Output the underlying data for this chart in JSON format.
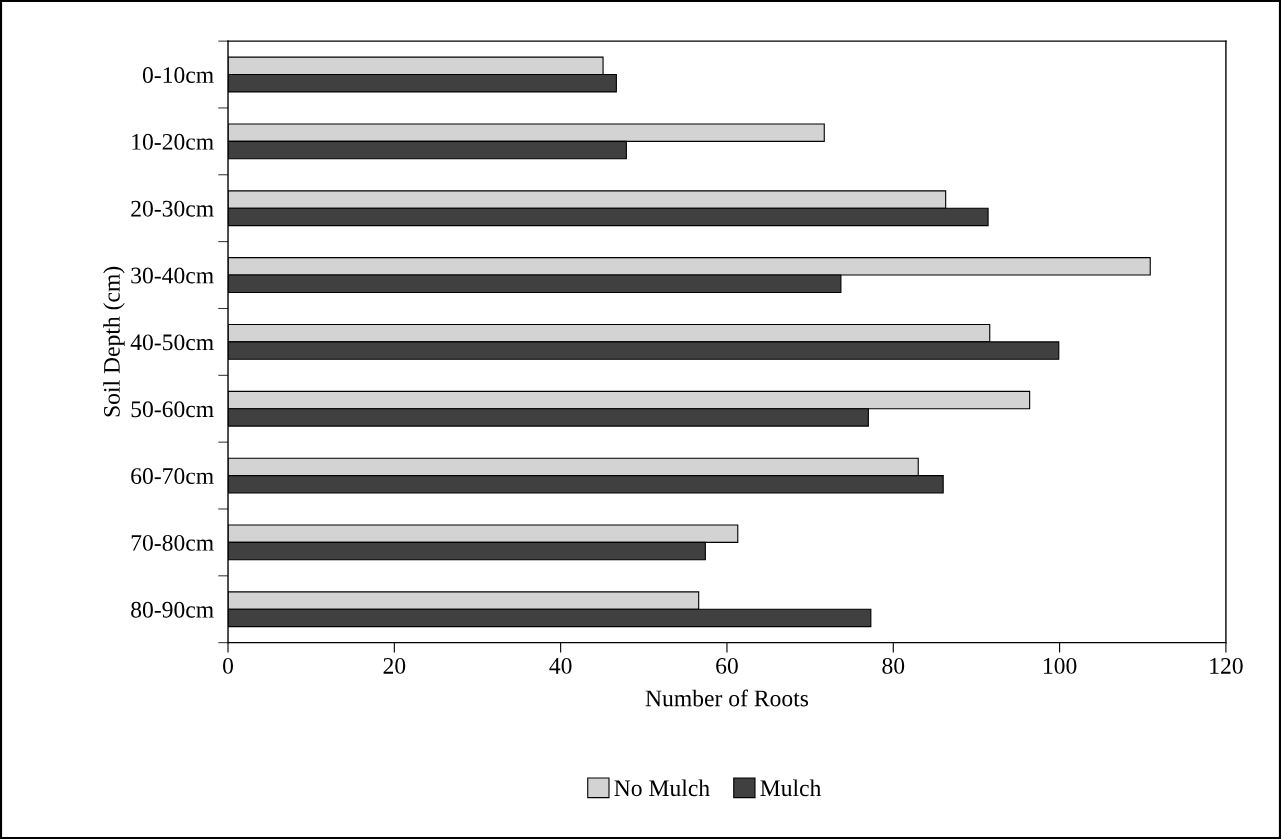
{
  "chart_data": {
    "type": "bar",
    "orientation": "horizontal",
    "xlabel": "Number of Roots",
    "ylabel": "Soil Depth (cm)",
    "categories": [
      "0-10cm",
      "10-20cm",
      "20-30cm",
      "30-40cm",
      "40-50cm",
      "50-60cm",
      "60-70cm",
      "70-80cm",
      "80-90cm"
    ],
    "series": [
      {
        "name": "No Mulch",
        "color": "#d3d3d3",
        "values": [
          45.1,
          71.7,
          86.3,
          110.9,
          91.6,
          96.4,
          83.0,
          61.3,
          56.6
        ]
      },
      {
        "name": "Mulch",
        "color": "#404040",
        "values": [
          46.7,
          47.9,
          91.4,
          73.7,
          99.9,
          77.0,
          86.0,
          57.4,
          77.3
        ]
      }
    ],
    "xlim": [
      0,
      120
    ],
    "xticks": [
      0,
      20,
      40,
      60,
      80,
      100,
      120
    ],
    "grid": false,
    "legend": "bottom"
  }
}
